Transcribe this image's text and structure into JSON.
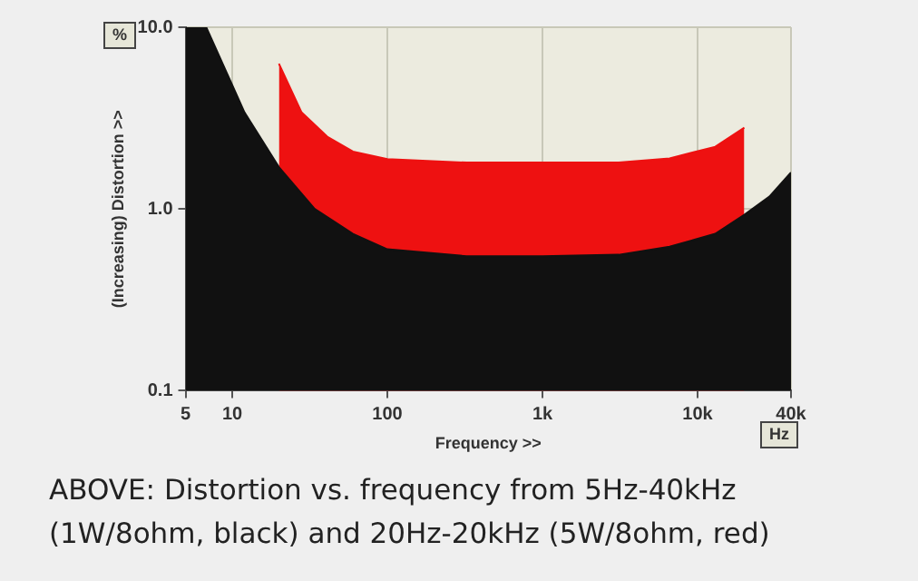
{
  "chart_data": {
    "type": "area",
    "xlabel": "Frequency >>",
    "ylabel": "(Increasing) Distortion >>",
    "annotations": [
      "%",
      "Hz",
      "ABOVE: Distortion vs. frequency from 5Hz-40kHz (1W/8ohm, black) and 20Hz-20kHz (5W/8ohm, red)"
    ],
    "series": [
      {
        "color": "#111111",
        "x": [
          5,
          6.8,
          12,
          20,
          34,
          60,
          100,
          324,
          1000,
          3100,
          6600,
          13000,
          20000,
          29000,
          40000
        ],
        "values": [
          10,
          10,
          3.4,
          1.7,
          1.0,
          0.73,
          0.6,
          0.55,
          0.55,
          0.56,
          0.62,
          0.73,
          0.93,
          1.17,
          1.59
        ]
      },
      {
        "color": "#ee1111",
        "x": [
          20,
          28,
          41,
          60,
          100,
          324,
          1000,
          3100,
          6600,
          13000,
          20000
        ],
        "values": [
          6.3,
          3.4,
          2.5,
          2.07,
          1.88,
          1.8,
          1.8,
          1.8,
          1.9,
          2.2,
          2.8
        ]
      }
    ],
    "log": "xy",
    "xlim": [
      5,
      40000
    ],
    "ylim": [
      0.1,
      10
    ],
    "xticks": [
      5,
      10,
      100,
      {
        "value": 1000,
        "label": "1k"
      },
      {
        "value": 10000,
        "label": "10k"
      },
      {
        "value": 40000,
        "label": "40k"
      }
    ],
    "yticks": [
      0.1,
      {
        "value": 1,
        "label": "1.0"
      },
      {
        "value": 10,
        "label": "10.0"
      }
    ],
    "grid": true,
    "legend": false,
    "marker": "none"
  }
}
